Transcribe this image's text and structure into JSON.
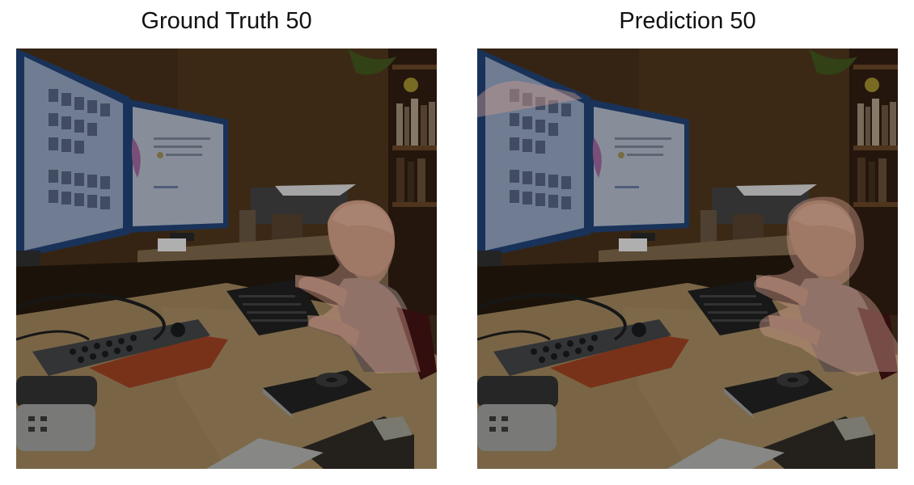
{
  "panels": [
    {
      "title": "Ground Truth 50",
      "mask": "ground-truth"
    },
    {
      "title": "Prediction 50",
      "mask": "prediction"
    }
  ],
  "overlay_color": "#e8b0a0"
}
